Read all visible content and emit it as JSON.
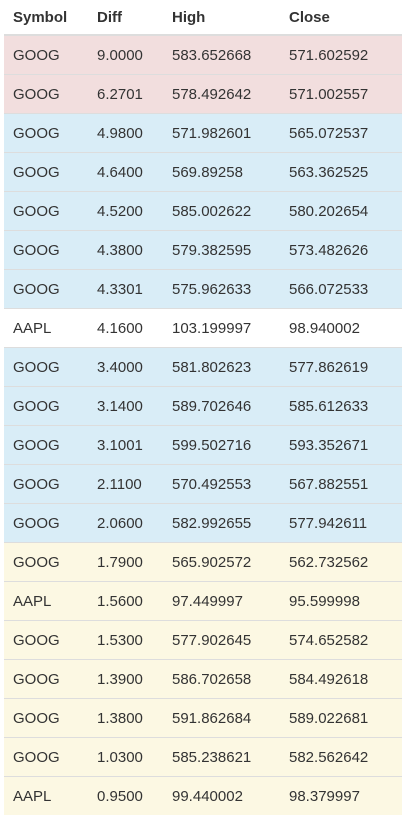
{
  "table": {
    "headers": [
      "Symbol",
      "Diff",
      "High",
      "Close"
    ],
    "rows": [
      {
        "symbol": "GOOG",
        "diff": "9.0000",
        "high": "583.652668",
        "close": "571.602592",
        "status": "danger"
      },
      {
        "symbol": "GOOG",
        "diff": "6.2701",
        "high": "578.492642",
        "close": "571.002557",
        "status": "danger"
      },
      {
        "symbol": "GOOG",
        "diff": "4.9800",
        "high": "571.982601",
        "close": "565.072537",
        "status": "info"
      },
      {
        "symbol": "GOOG",
        "diff": "4.6400",
        "high": "569.89258",
        "close": "563.362525",
        "status": "info"
      },
      {
        "symbol": "GOOG",
        "diff": "4.5200",
        "high": "585.002622",
        "close": "580.202654",
        "status": "info"
      },
      {
        "symbol": "GOOG",
        "diff": "4.3800",
        "high": "579.382595",
        "close": "573.482626",
        "status": "info"
      },
      {
        "symbol": "GOOG",
        "diff": "4.3301",
        "high": "575.962633",
        "close": "566.072533",
        "status": "info"
      },
      {
        "symbol": "AAPL",
        "diff": "4.1600",
        "high": "103.199997",
        "close": "98.940002",
        "status": "plain"
      },
      {
        "symbol": "GOOG",
        "diff": "3.4000",
        "high": "581.802623",
        "close": "577.862619",
        "status": "info"
      },
      {
        "symbol": "GOOG",
        "diff": "3.1400",
        "high": "589.702646",
        "close": "585.612633",
        "status": "info"
      },
      {
        "symbol": "GOOG",
        "diff": "3.1001",
        "high": "599.502716",
        "close": "593.352671",
        "status": "info"
      },
      {
        "symbol": "GOOG",
        "diff": "2.1100",
        "high": "570.492553",
        "close": "567.882551",
        "status": "info"
      },
      {
        "symbol": "GOOG",
        "diff": "2.0600",
        "high": "582.992655",
        "close": "577.942611",
        "status": "info"
      },
      {
        "symbol": "GOOG",
        "diff": "1.7900",
        "high": "565.902572",
        "close": "562.732562",
        "status": "warning"
      },
      {
        "symbol": "AAPL",
        "diff": "1.5600",
        "high": "97.449997",
        "close": "95.599998",
        "status": "warning"
      },
      {
        "symbol": "GOOG",
        "diff": "1.5300",
        "high": "577.902645",
        "close": "574.652582",
        "status": "warning"
      },
      {
        "symbol": "GOOG",
        "diff": "1.3900",
        "high": "586.702658",
        "close": "584.492618",
        "status": "warning"
      },
      {
        "symbol": "GOOG",
        "diff": "1.3800",
        "high": "591.862684",
        "close": "589.022681",
        "status": "warning"
      },
      {
        "symbol": "GOOG",
        "diff": "1.0300",
        "high": "585.238621",
        "close": "582.562642",
        "status": "warning"
      },
      {
        "symbol": "AAPL",
        "diff": "0.9500",
        "high": "99.440002",
        "close": "98.379997",
        "status": "warning"
      }
    ]
  },
  "colors": {
    "danger": "#f2dede",
    "info": "#d9edf7",
    "warning": "#fcf8e3",
    "plain": "#ffffff",
    "border": "#dddddd",
    "text": "#333333"
  }
}
